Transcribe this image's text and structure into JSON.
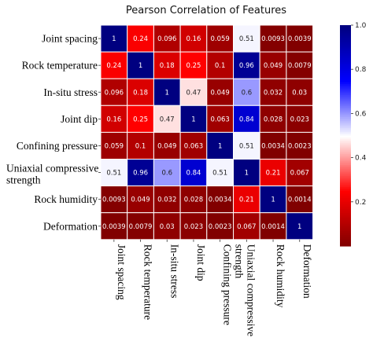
{
  "chart_data": {
    "type": "heatmap",
    "title": "Pearson Correlation of Features",
    "row_labels": [
      [
        "Joint spacing"
      ],
      [
        "Rock temperature"
      ],
      [
        "In-situ stress"
      ],
      [
        "Joint dip"
      ],
      [
        "Confining pressure"
      ],
      [
        "Uniaxial compressive",
        "strength"
      ],
      [
        "Rock humidity"
      ],
      [
        "Deformation"
      ]
    ],
    "col_labels": [
      [
        "Joint spacing"
      ],
      [
        "Rock temperature"
      ],
      [
        "In-situ stress"
      ],
      [
        "Joint dip"
      ],
      [
        "Confining pressure"
      ],
      [
        "Uniaxial compressive",
        "strength"
      ],
      [
        "Rock humidity"
      ],
      [
        "Deformation"
      ]
    ],
    "values": [
      [
        1,
        0.24,
        0.096,
        0.16,
        0.059,
        0.51,
        0.0093,
        0.0039
      ],
      [
        0.24,
        1,
        0.18,
        0.25,
        0.1,
        0.96,
        0.049,
        0.0079
      ],
      [
        0.096,
        0.18,
        1,
        0.47,
        0.049,
        0.6,
        0.032,
        0.03
      ],
      [
        0.16,
        0.25,
        0.47,
        1,
        0.063,
        0.84,
        0.028,
        0.023
      ],
      [
        0.059,
        0.1,
        0.049,
        0.063,
        1,
        0.51,
        0.0034,
        0.0023
      ],
      [
        0.51,
        0.96,
        0.6,
        0.84,
        0.51,
        1,
        0.21,
        0.067
      ],
      [
        0.0093,
        0.049,
        0.032,
        0.028,
        0.0034,
        0.21,
        1,
        0.0014
      ],
      [
        0.0039,
        0.0079,
        0.03,
        0.023,
        0.0023,
        0.067,
        0.0014,
        1
      ]
    ],
    "colormap": "seismic_r",
    "colorbar": {
      "range": [
        0,
        1
      ],
      "ticks": [
        "0.2",
        "0.4",
        "0.6",
        "0.8",
        "1.0"
      ]
    },
    "colors": {
      "low": "#800000",
      "mid": "#ffffff",
      "high": "#00007f"
    }
  }
}
